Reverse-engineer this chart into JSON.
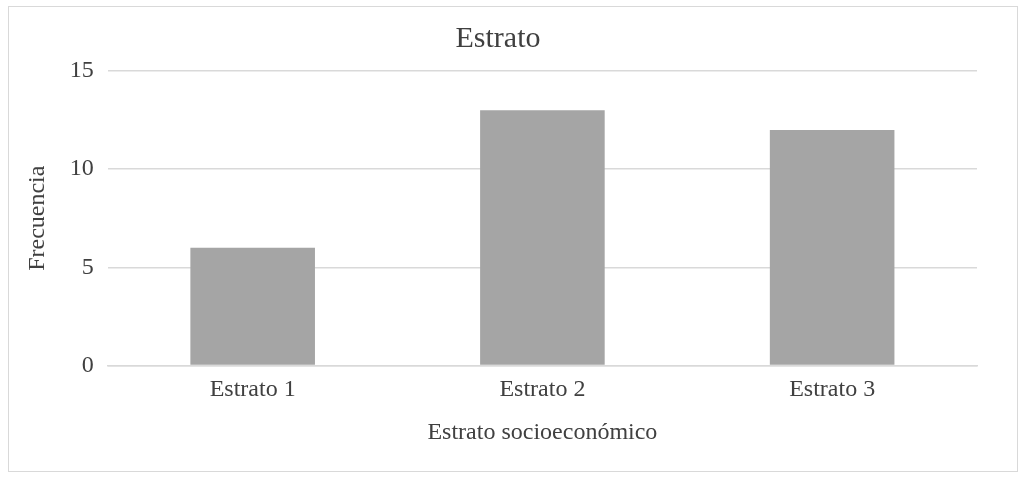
{
  "chart_data": {
    "type": "bar",
    "title": "Estrato",
    "xlabel": "Estrato socioeconómico",
    "ylabel": "Frecuencia",
    "categories": [
      "Estrato 1",
      "Estrato 2",
      "Estrato 3"
    ],
    "values": [
      6,
      13,
      12
    ],
    "color": "#a5a5a5",
    "ylim": [
      0,
      15
    ],
    "yticks": [
      0,
      5,
      10,
      15
    ],
    "grid": "y"
  }
}
